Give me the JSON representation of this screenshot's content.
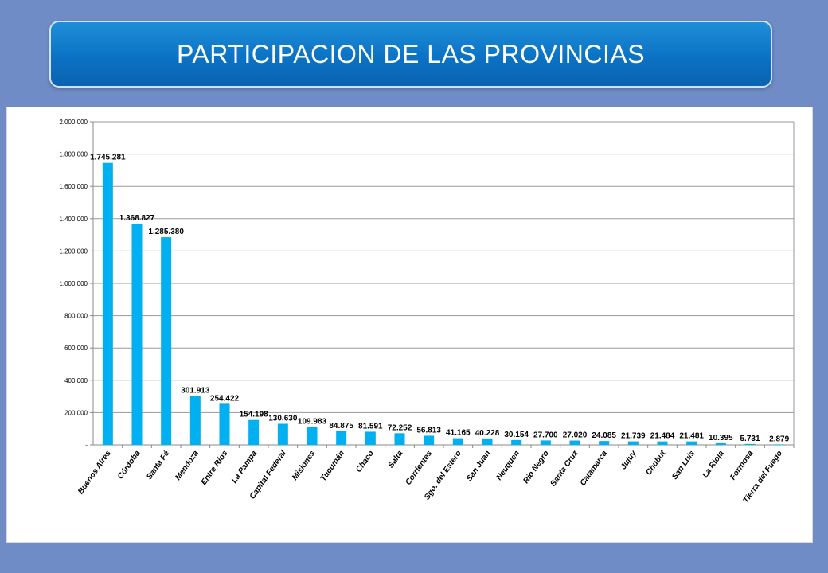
{
  "header": {
    "title": "PARTICIPACION DE LAS PROVINCIAS"
  },
  "chart_data": {
    "type": "bar",
    "title": "",
    "xlabel": "",
    "ylabel": "",
    "ylim": [
      0,
      2000000
    ],
    "grid": true,
    "bar_color": "#00b0f0",
    "y_ticks": [
      0,
      200000,
      400000,
      600000,
      800000,
      1000000,
      1200000,
      1400000,
      1600000,
      1800000,
      2000000
    ],
    "y_tick_labels": [
      "-",
      "200.000",
      "400.000",
      "600.000",
      "800.000",
      "1.000.000",
      "1.200.000",
      "1.400.000",
      "1.600.000",
      "1.800.000",
      "2.000.000"
    ],
    "categories": [
      "Buenos Aires",
      "Córdoba",
      "Santa Fé",
      "Mendoza",
      "Entre Ríos",
      "La Pampa",
      "Capital Federal",
      "Misiones",
      "Tucumán",
      "Chaco",
      "Salta",
      "Corrientes",
      "Sgo. del Estero",
      "San Juan",
      "Neuquen",
      "Rio Negro",
      "Santa Cruz",
      "Catamarca",
      "Jujuy",
      "Chubut",
      "San Luis",
      "La Rioja",
      "Formosa",
      "Tierra del Fuego"
    ],
    "values": [
      1745281,
      1368827,
      1285380,
      301913,
      254422,
      154198,
      130630,
      109983,
      84875,
      81591,
      72252,
      56813,
      41165,
      40228,
      30154,
      27700,
      27020,
      24085,
      21739,
      21484,
      21481,
      10395,
      5731,
      2879
    ],
    "data_labels": [
      "1.745.281",
      "1.368.827",
      "1.285.380",
      "301.913",
      "254.422",
      "154.198",
      "130.630",
      "109.983",
      "84.875",
      "81.591",
      "72.252",
      "56.813",
      "41.165",
      "40.228",
      "30.154",
      "27.700",
      "27.020",
      "24.085",
      "21.739",
      "21.484",
      "21.481",
      "10.395",
      "5.731",
      "2.879"
    ]
  }
}
